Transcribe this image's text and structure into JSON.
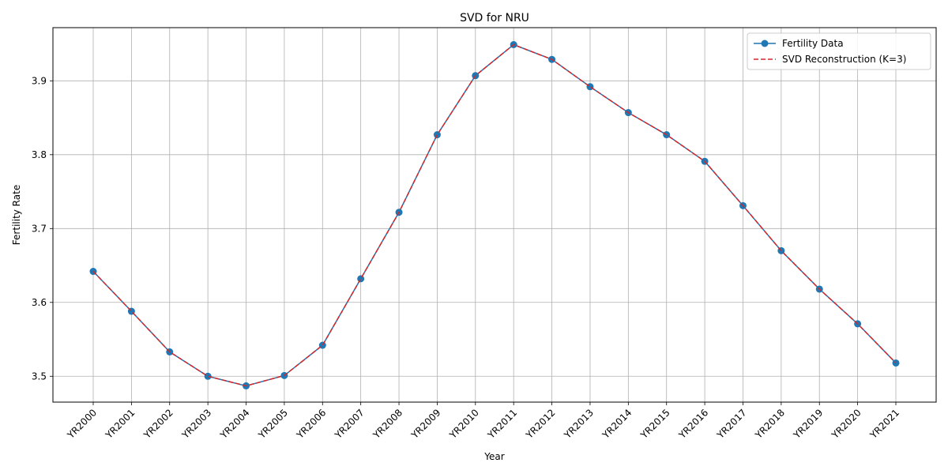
{
  "chart_data": {
    "type": "line",
    "title": "SVD for NRU",
    "xlabel": "Year",
    "ylabel": "Fertility Rate",
    "categories": [
      "YR2000",
      "YR2001",
      "YR2002",
      "YR2003",
      "YR2004",
      "YR2005",
      "YR2006",
      "YR2007",
      "YR2008",
      "YR2009",
      "YR2010",
      "YR2011",
      "YR2012",
      "YR2013",
      "YR2014",
      "YR2015",
      "YR2016",
      "YR2017",
      "YR2018",
      "YR2019",
      "YR2020",
      "YR2021"
    ],
    "ylim": [
      3.465,
      3.972
    ],
    "yticks": [
      3.5,
      3.6,
      3.7,
      3.8,
      3.9
    ],
    "ytick_labels": [
      "3.5",
      "3.6",
      "3.7",
      "3.8",
      "3.9"
    ],
    "grid": true,
    "legend_position": "top-right",
    "series": [
      {
        "name": "Fertility Data",
        "color": "#1f77b4",
        "style": "solid-with-markers",
        "values": [
          3.642,
          3.588,
          3.533,
          3.5,
          3.487,
          3.501,
          3.542,
          3.632,
          3.722,
          3.827,
          3.907,
          3.949,
          3.929,
          3.892,
          3.857,
          3.827,
          3.791,
          3.731,
          3.67,
          3.618,
          3.571,
          3.518
        ]
      },
      {
        "name": "SVD Reconstruction (K=3)",
        "color": "#d62728",
        "style": "dashed",
        "values": [
          3.642,
          3.588,
          3.533,
          3.5,
          3.487,
          3.501,
          3.542,
          3.632,
          3.722,
          3.827,
          3.907,
          3.949,
          3.929,
          3.892,
          3.857,
          3.827,
          3.791,
          3.731,
          3.67,
          3.618,
          3.571,
          3.518
        ]
      }
    ]
  }
}
